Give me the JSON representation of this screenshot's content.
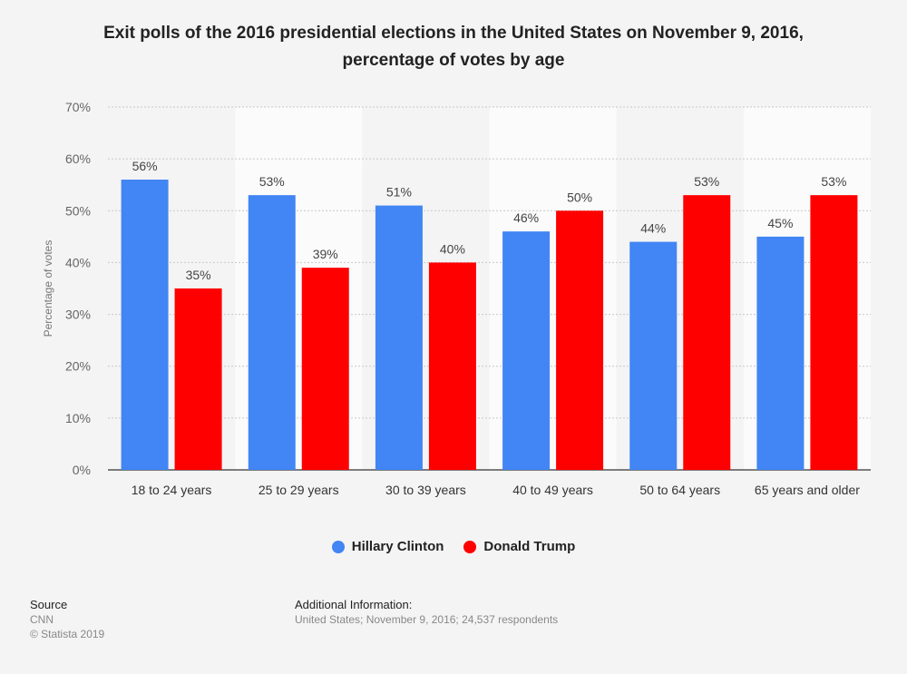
{
  "title_lines": [
    "Exit polls of the 2016 presidential elections in the United States on November 9, 2016,",
    "percentage of votes by age"
  ],
  "chart_data": {
    "type": "bar",
    "title": "Exit polls of the 2016 presidential elections in the United States on November 9, 2016, percentage of votes by age",
    "xlabel": "",
    "ylabel": "Percentage of votes",
    "categories": [
      "18 to 24 years",
      "25 to 29 years",
      "30 to 39 years",
      "40 to 49 years",
      "50 to 64 years",
      "65 years and older"
    ],
    "series": [
      {
        "name": "Hillary Clinton",
        "color": "#4285f4",
        "values": [
          56,
          53,
          51,
          46,
          44,
          45
        ]
      },
      {
        "name": "Donald Trump",
        "color": "#ff0000",
        "values": [
          35,
          39,
          40,
          50,
          53,
          53
        ]
      }
    ],
    "ylim": [
      0,
      70
    ],
    "yticks": [
      0,
      10,
      20,
      30,
      40,
      50,
      60,
      70
    ],
    "value_suffix": "%",
    "grid": true,
    "legend": "bottom-center"
  },
  "source": {
    "heading": "Source",
    "lines": [
      "CNN",
      "© Statista 2019"
    ]
  },
  "additional_info": {
    "heading": "Additional Information:",
    "text": "United States; November 9, 2016; 24,537 respondents"
  }
}
